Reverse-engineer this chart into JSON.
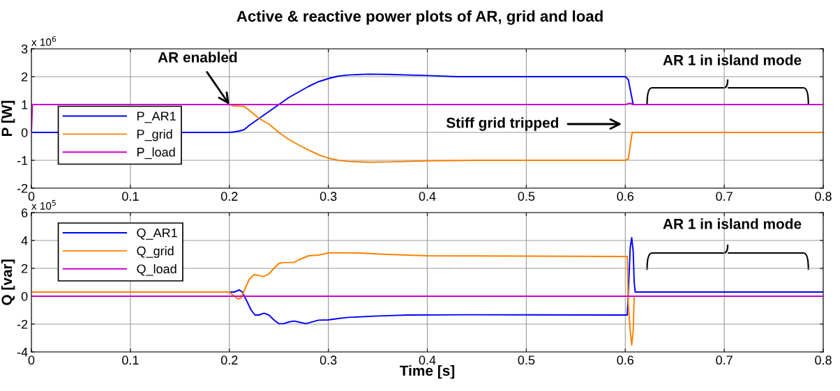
{
  "chart_data": [
    {
      "type": "line",
      "title": "Active & reactive power plots of AR, grid and load",
      "ylabel": "P [W]",
      "xlim": [
        0,
        0.8
      ],
      "xticks": [
        0,
        0.1,
        0.2,
        0.3,
        0.4,
        0.5,
        0.6,
        0.7,
        0.8
      ],
      "ylim": [
        -2,
        3
      ],
      "yticks": [
        -2,
        -1,
        0,
        1,
        2,
        3
      ],
      "grid": true,
      "legend": "left",
      "annotations": [
        "x 10$^{6}$",
        {
          "text": "AR 1 in island mode",
          "x": 0.7035,
          "y": 1
        },
        {
          "text": "AR enabled",
          "x": 0.2,
          "y": 1
        },
        "Stiff grid tripped"
      ],
      "series": [
        {
          "name": "P_AR1",
          "color": "#0000ff",
          "x": [
            0,
            0.2,
            0.205,
            0.21,
            0.215,
            0.22,
            0.23,
            0.24,
            0.25,
            0.26,
            0.27,
            0.28,
            0.29,
            0.3,
            0.31,
            0.32,
            0.34,
            0.36,
            0.4,
            0.43,
            0.6,
            0.603,
            0.608
          ],
          "values": [
            0,
            0,
            0.02,
            0.05,
            0.1,
            0.25,
            0.5,
            0.75,
            1.0,
            1.25,
            1.45,
            1.65,
            1.82,
            1.93,
            2.02,
            2.06,
            2.09,
            2.08,
            2.04,
            2.0,
            2.0,
            1.9,
            1.0
          ]
        },
        {
          "name": "P_grid",
          "color": "#ff8000",
          "x": [
            0.2,
            0.205,
            0.215,
            0.22,
            0.23,
            0.24,
            0.25,
            0.26,
            0.27,
            0.28,
            0.29,
            0.3,
            0.31,
            0.32,
            0.34,
            0.36,
            0.4,
            0.45,
            0.6,
            0.603,
            0.607,
            0.8
          ],
          "values": [
            1,
            0.95,
            0.93,
            0.8,
            0.5,
            0.3,
            0.0,
            -0.25,
            -0.45,
            -0.63,
            -0.8,
            -0.92,
            -1.0,
            -1.04,
            -1.07,
            -1.06,
            -1.02,
            -1.0,
            -1.0,
            -0.95,
            0.0,
            0.0
          ]
        },
        {
          "name": "P_load",
          "color": "#cc00cc",
          "x": [
            0,
            0.001,
            0.6,
            0.605,
            0.608,
            0.8
          ],
          "values": [
            0,
            1,
            1,
            1.05,
            1,
            1
          ]
        }
      ]
    },
    {
      "type": "line",
      "xlabel": "Time [s]",
      "ylabel": "Q [var]",
      "xlim": [
        0,
        0.8
      ],
      "xticks": [
        0,
        0.1,
        0.2,
        0.3,
        0.4,
        0.5,
        0.6,
        0.7,
        0.8
      ],
      "ylim": [
        -4,
        6
      ],
      "yticks": [
        -4,
        -2,
        0,
        2,
        4,
        6
      ],
      "grid": true,
      "legend": "top left",
      "annotations": [
        "x 10$^{5}$",
        "AR 1 in island mode"
      ],
      "series": [
        {
          "name": "Q_AR1",
          "color": "#0000ff",
          "x": [
            0.2,
            0.205,
            0.21,
            0.213,
            0.218,
            0.222,
            0.226,
            0.23,
            0.235,
            0.24,
            0.245,
            0.25,
            0.255,
            0.26,
            0.265,
            0.27,
            0.277,
            0.285,
            0.29,
            0.3,
            0.31,
            0.32,
            0.35,
            0.38,
            0.44,
            0.6,
            0.602,
            0.603,
            0.605,
            0.6065,
            0.608,
            0.609,
            0.61,
            0.8
          ],
          "values": [
            0.3,
            0.3,
            0.45,
            0.3,
            -0.4,
            -1.0,
            -1.35,
            -1.35,
            -1.22,
            -1.35,
            -1.7,
            -1.97,
            -1.97,
            -1.85,
            -1.78,
            -1.85,
            -1.97,
            -1.82,
            -1.72,
            -1.7,
            -1.6,
            -1.52,
            -1.42,
            -1.35,
            -1.33,
            -1.35,
            -1.35,
            0.2,
            3.5,
            4.2,
            3.2,
            1.0,
            0.3,
            0.3
          ]
        },
        {
          "name": "Q_grid",
          "color": "#ff8000",
          "x": [
            0,
            0.2,
            0.205,
            0.209,
            0.212,
            0.215,
            0.22,
            0.225,
            0.23,
            0.235,
            0.24,
            0.245,
            0.25,
            0.255,
            0.265,
            0.27,
            0.28,
            0.29,
            0.3,
            0.305,
            0.33,
            0.36,
            0.4,
            0.6,
            0.602,
            0.603,
            0.605,
            0.6065,
            0.608,
            0.609,
            0.61
          ],
          "values": [
            0.3,
            0.3,
            0.0,
            -0.2,
            -0.1,
            0.4,
            1.2,
            1.55,
            1.48,
            1.42,
            1.6,
            2.0,
            2.35,
            2.42,
            2.42,
            2.6,
            2.9,
            2.95,
            3.1,
            3.12,
            3.1,
            3.0,
            2.9,
            2.85,
            2.85,
            -0.5,
            -2.5,
            -3.5,
            -2.5,
            0,
            0
          ]
        },
        {
          "name": "Q_load",
          "color": "#cc00cc",
          "x": [
            0,
            0.8
          ],
          "values": [
            0,
            0
          ]
        }
      ]
    }
  ]
}
